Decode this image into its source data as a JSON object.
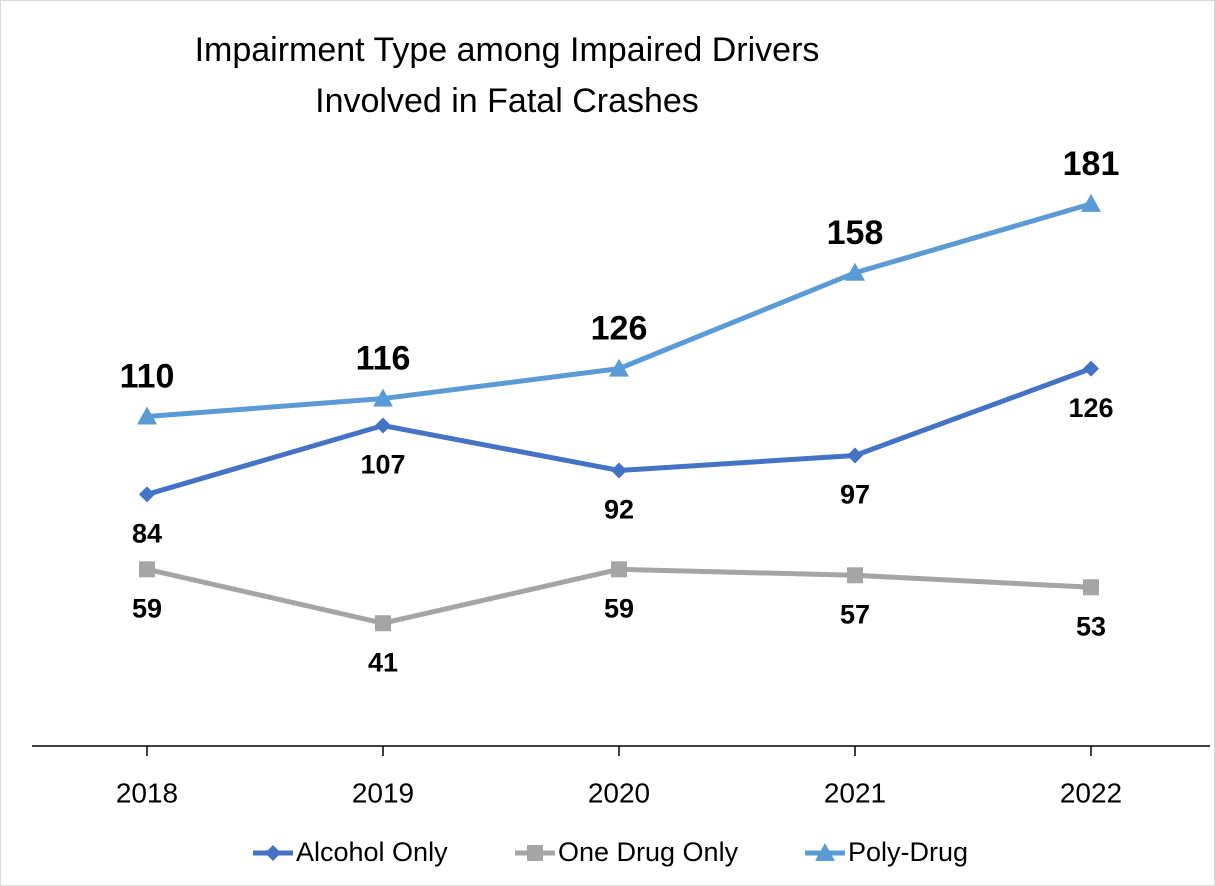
{
  "chart_data": {
    "type": "line",
    "title": [
      "Impairment Type among Impaired Drivers",
      "Involved in Fatal Crashes"
    ],
    "categories": [
      "2018",
      "2019",
      "2020",
      "2021",
      "2022"
    ],
    "series": [
      {
        "name": "Alcohol Only",
        "color": "#4472c4",
        "marker": "diamond",
        "labels": "below",
        "values": [
          84,
          107,
          92,
          97,
          126
        ]
      },
      {
        "name": "One Drug Only",
        "color": "#a5a5a5",
        "marker": "square",
        "labels": "below",
        "values": [
          59,
          41,
          59,
          57,
          53
        ]
      },
      {
        "name": "Poly-Drug",
        "color": "#5b9bd5",
        "marker": "triangle",
        "labels": "above",
        "values": [
          110,
          116,
          126,
          158,
          181
        ]
      }
    ],
    "ylim": [
      0,
      200
    ],
    "legend": "bottom"
  }
}
